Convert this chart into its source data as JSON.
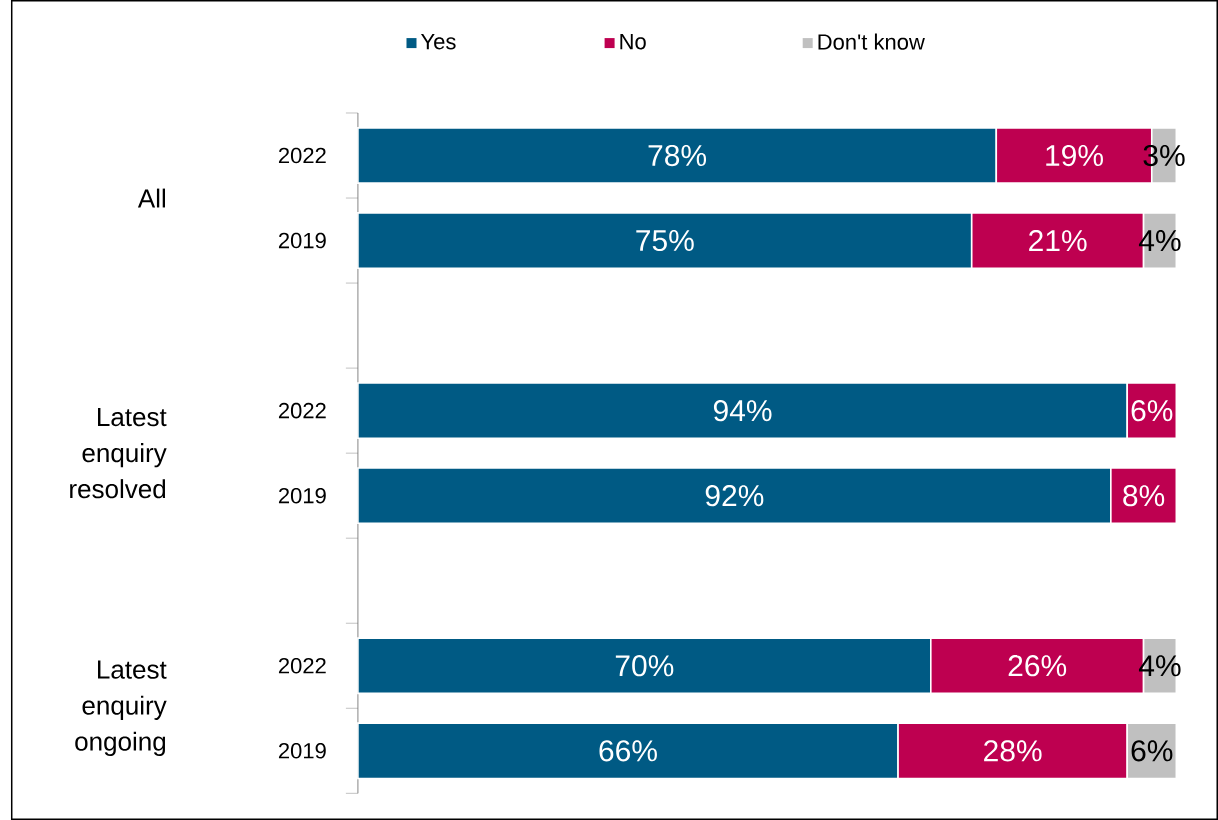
{
  "chart_data": {
    "type": "bar",
    "orientation": "horizontal",
    "stacked": true,
    "xlim": [
      0,
      100
    ],
    "legend": "top",
    "categories": [
      "2022",
      "2019",
      "2022",
      "2019",
      "2022",
      "2019"
    ],
    "annotations": [
      "All",
      "Latest enquiry resolved",
      "Latest enquiry ongoing"
    ],
    "series": [
      {
        "name": "Yes",
        "color": "#005a84",
        "values": [
          78,
          75,
          94,
          92,
          70,
          66
        ],
        "value_labels": [
          "78%",
          "75%",
          "94%",
          "92%",
          "70%",
          "66%"
        ]
      },
      {
        "name": "No",
        "color": "#be0050",
        "values": [
          19,
          21,
          6,
          8,
          26,
          28
        ],
        "value_labels": [
          "19%",
          "21%",
          "6%",
          "8%",
          "26%",
          "28%"
        ]
      },
      {
        "name": "Don't know",
        "color": "#c0c0c0",
        "values": [
          3,
          4,
          null,
          null,
          4,
          6
        ],
        "value_labels": [
          "3%",
          "4%",
          null,
          null,
          "4%",
          "6%"
        ]
      }
    ]
  }
}
